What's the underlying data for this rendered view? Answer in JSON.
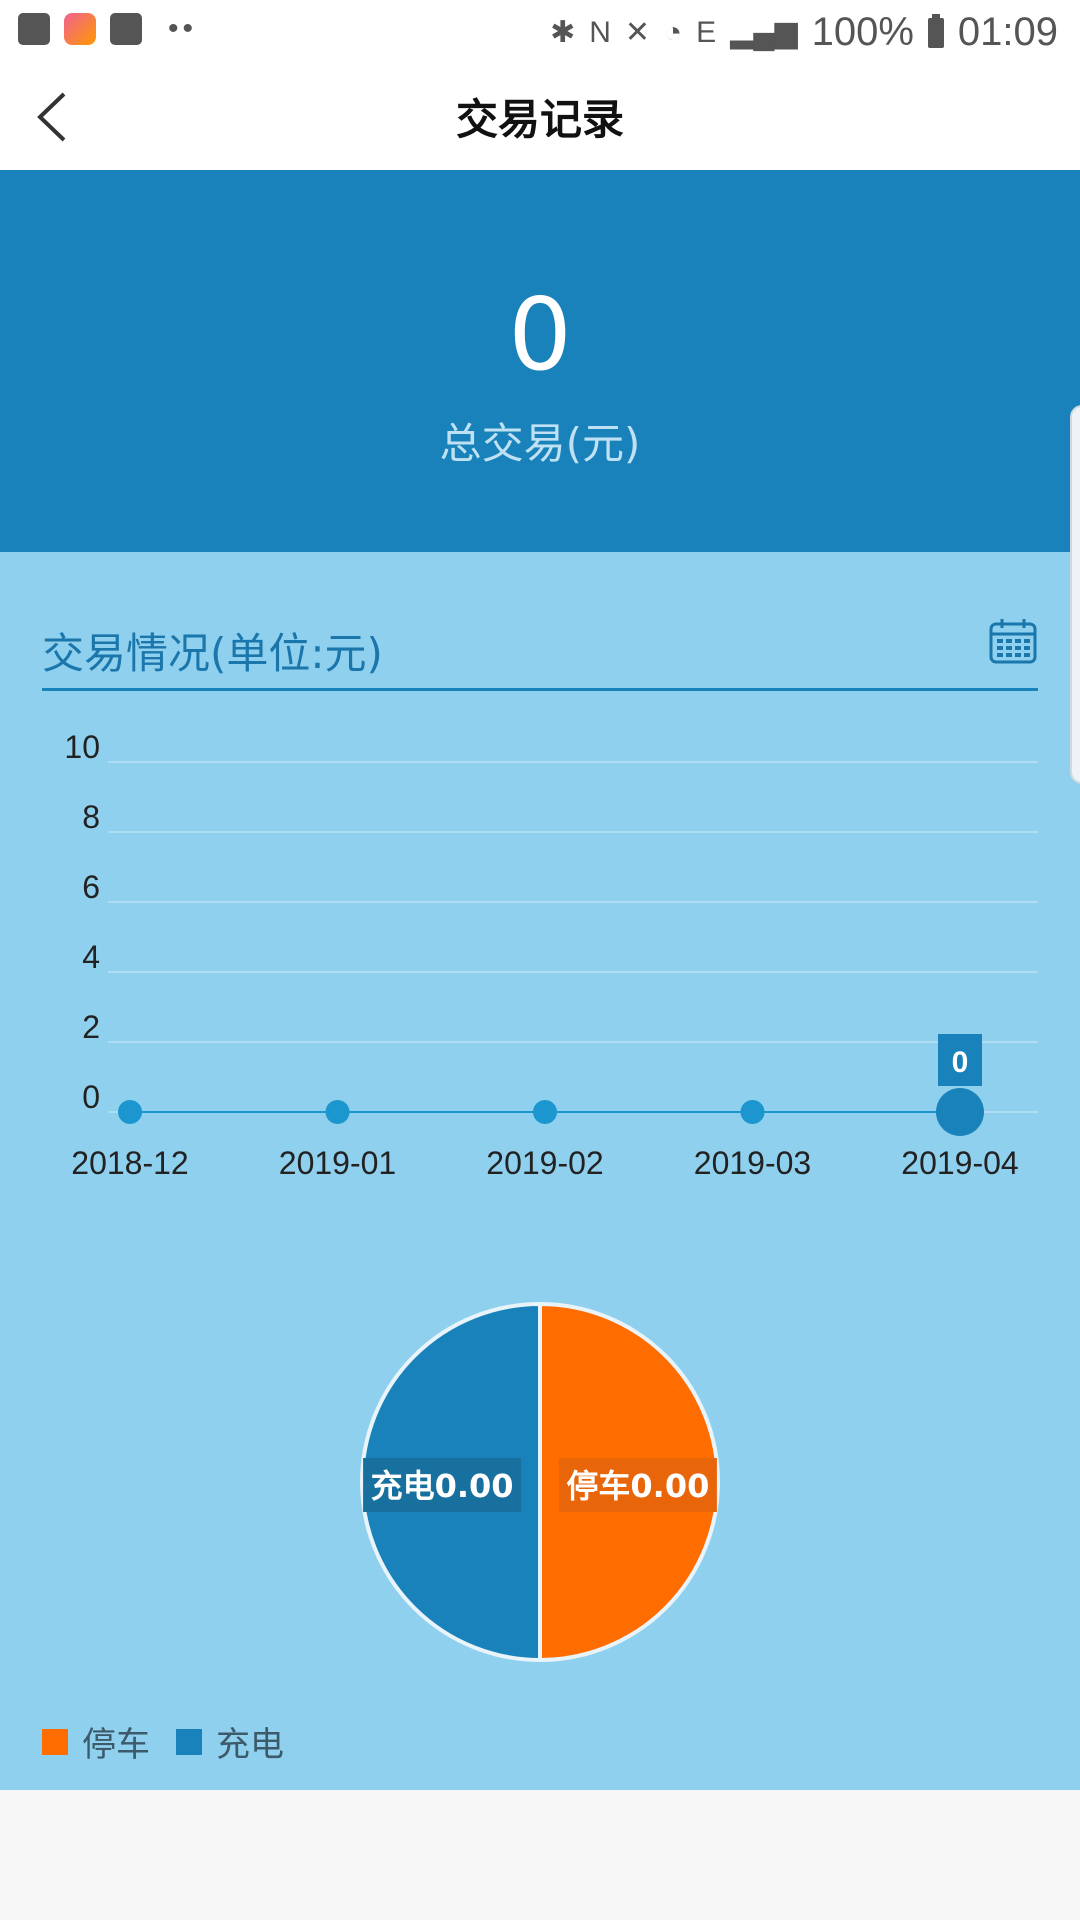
{
  "status_bar": {
    "battery": "100%",
    "time": "01:09",
    "network": "E"
  },
  "header": {
    "title": "交易记录",
    "back_icon": "chevron-left-icon"
  },
  "summary": {
    "total_amount": "0",
    "total_label": "总交易(元)"
  },
  "chart_section": {
    "title": "交易情况(单位:元)",
    "calendar_icon": "calendar-icon"
  },
  "chart_data": [
    {
      "type": "line",
      "categories": [
        "2018-12",
        "2019-01",
        "2019-02",
        "2019-03",
        "2019-04"
      ],
      "values": [
        0,
        0,
        0,
        0,
        0
      ],
      "ylim": [
        0,
        10
      ],
      "yticks": [
        0,
        2,
        4,
        6,
        8,
        10
      ],
      "highlight": {
        "index": 4,
        "label": "0"
      },
      "grid": true,
      "color": "#1b96cf"
    },
    {
      "type": "pie",
      "slices": [
        {
          "name": "停车",
          "value": 0.5,
          "label": "停车0.00",
          "color": "#ff6d00"
        },
        {
          "name": "充电",
          "value": 0.5,
          "label": "充电0.00",
          "color": "#1982ba"
        }
      ],
      "legend": [
        "停车",
        "充电"
      ]
    }
  ],
  "colors": {
    "primary": "#1982ba",
    "panel": "#8fd0ee",
    "orange": "#ff6d00"
  }
}
